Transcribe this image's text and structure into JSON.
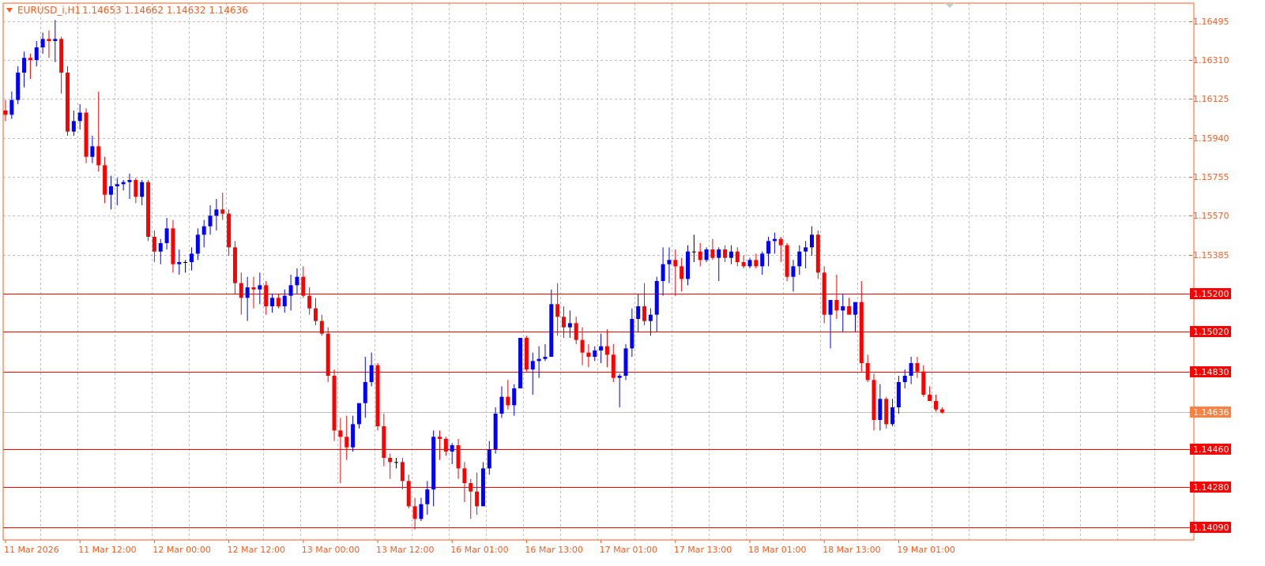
{
  "header": {
    "symbol_label": "EURUSD_i,H1",
    "ohlc_text": "1.14653 1.14662 1.14632 1.14636"
  },
  "colors": {
    "bull": "#0000ff",
    "bear": "#ff0000",
    "wick": "#000000",
    "grid": "#c0c0c0",
    "frame": "#ff5a1f",
    "axis_text": "#ff5a1f",
    "level_line": "#ff0000",
    "price_tag_bg": "#ff0000",
    "current_tag_bg": "#ff8040"
  },
  "chart_data": {
    "type": "candlestick",
    "timeframe": "H1",
    "grid": true,
    "ylim": [
      1.1403,
      1.1658
    ],
    "y_ticks": [
      "1.16495",
      "1.16310",
      "1.16125",
      "1.15940",
      "1.15755",
      "1.15570",
      "1.15385",
      "1.15200",
      "1.15020",
      "1.14830",
      "1.14636",
      "1.14460",
      "1.14280",
      "1.14090"
    ],
    "x_labels": [
      "11 Mar 2026",
      "11 Mar 12:00",
      "12 Mar 00:00",
      "12 Mar 12:00",
      "13 Mar 00:00",
      "13 Mar 12:00",
      "16 Mar 01:00",
      "16 Mar 13:00",
      "17 Mar 01:00",
      "17 Mar 13:00",
      "18 Mar 01:00",
      "18 Mar 13:00",
      "19 Mar 01:00"
    ],
    "x_label_bar_index": [
      0,
      12,
      24,
      36,
      48,
      60,
      72,
      84,
      96,
      108,
      120,
      132,
      144
    ],
    "levels": [
      1.152,
      1.1502,
      1.1483,
      1.1446,
      1.1428,
      1.1409
    ],
    "level_labels": [
      "1.15200",
      "1.15020",
      "1.14830",
      "1.14460",
      "1.14280",
      "1.14090"
    ],
    "current_price": 1.14636,
    "current_price_label": "1.14636",
    "candles": [
      [
        1.1607,
        1.1612,
        1.1602,
        1.1605
      ],
      [
        1.1605,
        1.1616,
        1.1603,
        1.1612
      ],
      [
        1.1612,
        1.1628,
        1.161,
        1.1625
      ],
      [
        1.1625,
        1.1635,
        1.1618,
        1.1632
      ],
      [
        1.1632,
        1.1634,
        1.1622,
        1.1631
      ],
      [
        1.1631,
        1.164,
        1.1628,
        1.1637
      ],
      [
        1.1637,
        1.1644,
        1.1634,
        1.1641
      ],
      [
        1.1641,
        1.1645,
        1.1632,
        1.164
      ],
      [
        1.164,
        1.165,
        1.163,
        1.1641
      ],
      [
        1.1641,
        1.1642,
        1.1615,
        1.1625
      ],
      [
        1.1625,
        1.1628,
        1.1595,
        1.1597
      ],
      [
        1.1597,
        1.1607,
        1.1595,
        1.1602
      ],
      [
        1.1602,
        1.161,
        1.1598,
        1.1606
      ],
      [
        1.1606,
        1.1608,
        1.1582,
        1.1585
      ],
      [
        1.1585,
        1.1595,
        1.1582,
        1.159
      ],
      [
        1.159,
        1.1616,
        1.1578,
        1.1581
      ],
      [
        1.1581,
        1.1585,
        1.1563,
        1.1567
      ],
      [
        1.1567,
        1.1576,
        1.156,
        1.1571
      ],
      [
        1.1571,
        1.1575,
        1.1562,
        1.1572
      ],
      [
        1.1572,
        1.1574,
        1.1569,
        1.1573
      ],
      [
        1.1573,
        1.1577,
        1.1565,
        1.1574
      ],
      [
        1.1574,
        1.1575,
        1.1563,
        1.1566
      ],
      [
        1.1566,
        1.1574,
        1.1562,
        1.1573
      ],
      [
        1.1573,
        1.1574,
        1.1545,
        1.1547
      ],
      [
        1.1547,
        1.155,
        1.1535,
        1.154
      ],
      [
        1.154,
        1.1546,
        1.1534,
        1.1544
      ],
      [
        1.1544,
        1.1556,
        1.1541,
        1.1551
      ],
      [
        1.1551,
        1.1555,
        1.153,
        1.1534
      ],
      [
        1.1534,
        1.1541,
        1.1529,
        1.1535
      ],
      [
        1.1535,
        1.1536,
        1.153,
        1.1535
      ],
      [
        1.1535,
        1.1542,
        1.1531,
        1.1539
      ],
      [
        1.1539,
        1.1551,
        1.1536,
        1.1548
      ],
      [
        1.1548,
        1.1555,
        1.1542,
        1.1552
      ],
      [
        1.1552,
        1.1562,
        1.1548,
        1.1557
      ],
      [
        1.1557,
        1.1565,
        1.155,
        1.156
      ],
      [
        1.156,
        1.1568,
        1.1555,
        1.1558
      ],
      [
        1.1558,
        1.156,
        1.1538,
        1.1542
      ],
      [
        1.1542,
        1.1545,
        1.152,
        1.1525
      ],
      [
        1.1525,
        1.153,
        1.151,
        1.1518
      ],
      [
        1.1518,
        1.1528,
        1.1507,
        1.1523
      ],
      [
        1.1523,
        1.1528,
        1.1513,
        1.1522
      ],
      [
        1.1522,
        1.153,
        1.1515,
        1.1524
      ],
      [
        1.1524,
        1.1526,
        1.151,
        1.1514
      ],
      [
        1.1514,
        1.152,
        1.1511,
        1.1518
      ],
      [
        1.1518,
        1.152,
        1.1513,
        1.1514
      ],
      [
        1.1514,
        1.1522,
        1.1511,
        1.1519
      ],
      [
        1.1519,
        1.1529,
        1.1512,
        1.1524
      ],
      [
        1.1524,
        1.1532,
        1.152,
        1.1528
      ],
      [
        1.1528,
        1.1533,
        1.1518,
        1.1519
      ],
      [
        1.1519,
        1.1523,
        1.151,
        1.1513
      ],
      [
        1.1513,
        1.1518,
        1.1505,
        1.1507
      ],
      [
        1.1507,
        1.151,
        1.15,
        1.1501
      ],
      [
        1.1501,
        1.1504,
        1.1478,
        1.1481
      ],
      [
        1.1481,
        1.1484,
        1.145,
        1.1455
      ],
      [
        1.1455,
        1.1461,
        1.143,
        1.1452
      ],
      [
        1.1452,
        1.1462,
        1.1441,
        1.1447
      ],
      [
        1.1447,
        1.1462,
        1.1445,
        1.1458
      ],
      [
        1.1458,
        1.1467,
        1.1456,
        1.1468
      ],
      [
        1.1468,
        1.149,
        1.1461,
        1.1478
      ],
      [
        1.1478,
        1.1492,
        1.1476,
        1.1486
      ],
      [
        1.1486,
        1.1487,
        1.1455,
        1.1457
      ],
      [
        1.1457,
        1.1463,
        1.1438,
        1.1442
      ],
      [
        1.1442,
        1.1444,
        1.1432,
        1.144
      ],
      [
        1.144,
        1.1442,
        1.1437,
        1.144
      ],
      [
        1.144,
        1.1442,
        1.1427,
        1.1431
      ],
      [
        1.1431,
        1.1434,
        1.1418,
        1.1419
      ],
      [
        1.1419,
        1.1423,
        1.1408,
        1.1413
      ],
      [
        1.1413,
        1.1423,
        1.1412,
        1.142
      ],
      [
        1.142,
        1.1431,
        1.1415,
        1.1427
      ],
      [
        1.1427,
        1.1455,
        1.1419,
        1.1452
      ],
      [
        1.1452,
        1.1455,
        1.1441,
        1.1451
      ],
      [
        1.1451,
        1.1452,
        1.1443,
        1.1445
      ],
      [
        1.1445,
        1.1449,
        1.1439,
        1.1448
      ],
      [
        1.1448,
        1.1451,
        1.1432,
        1.1437
      ],
      [
        1.1437,
        1.144,
        1.1421,
        1.143
      ],
      [
        1.143,
        1.1432,
        1.1413,
        1.1426
      ],
      [
        1.1426,
        1.1435,
        1.1415,
        1.1419
      ],
      [
        1.1419,
        1.144,
        1.1419,
        1.1437
      ],
      [
        1.1437,
        1.145,
        1.1434,
        1.1446
      ],
      [
        1.1446,
        1.1466,
        1.1444,
        1.1463
      ],
      [
        1.1463,
        1.1476,
        1.1461,
        1.1471
      ],
      [
        1.1471,
        1.1479,
        1.1465,
        1.1467
      ],
      [
        1.1467,
        1.1477,
        1.1462,
        1.1475
      ],
      [
        1.1475,
        1.1499,
        1.1475,
        1.1499
      ],
      [
        1.1499,
        1.15,
        1.1483,
        1.1484
      ],
      [
        1.1484,
        1.1492,
        1.1472,
        1.1488
      ],
      [
        1.1488,
        1.1495,
        1.148,
        1.1489
      ],
      [
        1.1489,
        1.1496,
        1.1488,
        1.149
      ],
      [
        1.149,
        1.1522,
        1.149,
        1.1515
      ],
      [
        1.1515,
        1.1525,
        1.15,
        1.1509
      ],
      [
        1.1509,
        1.1514,
        1.1499,
        1.1504
      ],
      [
        1.1504,
        1.1512,
        1.1499,
        1.1506
      ],
      [
        1.1506,
        1.1509,
        1.1496,
        1.1498
      ],
      [
        1.1498,
        1.1504,
        1.1486,
        1.1492
      ],
      [
        1.1492,
        1.1496,
        1.1485,
        1.149
      ],
      [
        1.149,
        1.1495,
        1.1488,
        1.1493
      ],
      [
        1.1493,
        1.1501,
        1.1487,
        1.1495
      ],
      [
        1.1495,
        1.1503,
        1.1485,
        1.1491
      ],
      [
        1.1491,
        1.1496,
        1.1478,
        1.148
      ],
      [
        1.148,
        1.1482,
        1.1466,
        1.1481
      ],
      [
        1.1481,
        1.1496,
        1.1479,
        1.1494
      ],
      [
        1.1494,
        1.1513,
        1.149,
        1.1508
      ],
      [
        1.1508,
        1.152,
        1.1502,
        1.1514
      ],
      [
        1.1514,
        1.1525,
        1.1505,
        1.1507
      ],
      [
        1.1507,
        1.1513,
        1.15,
        1.151
      ],
      [
        1.151,
        1.1528,
        1.1502,
        1.1526
      ],
      [
        1.1526,
        1.1542,
        1.1519,
        1.1534
      ],
      [
        1.1534,
        1.1542,
        1.1525,
        1.1536
      ],
      [
        1.1536,
        1.1541,
        1.1519,
        1.1533
      ],
      [
        1.1533,
        1.1537,
        1.1521,
        1.1527
      ],
      [
        1.1527,
        1.1543,
        1.1524,
        1.154
      ],
      [
        1.154,
        1.1548,
        1.1535,
        1.154
      ],
      [
        1.154,
        1.1544,
        1.1533,
        1.1536
      ],
      [
        1.1536,
        1.1542,
        1.1535,
        1.1541
      ],
      [
        1.1541,
        1.1546,
        1.1536,
        1.1537
      ],
      [
        1.1537,
        1.1542,
        1.1526,
        1.1541
      ],
      [
        1.1541,
        1.1543,
        1.1535,
        1.1537
      ],
      [
        1.1537,
        1.1543,
        1.1534,
        1.154
      ],
      [
        1.154,
        1.1542,
        1.1533,
        1.1535
      ],
      [
        1.1535,
        1.1538,
        1.1532,
        1.1533
      ],
      [
        1.1533,
        1.1537,
        1.1532,
        1.1536
      ],
      [
        1.1536,
        1.1539,
        1.1532,
        1.1533
      ],
      [
        1.1533,
        1.154,
        1.1529,
        1.1539
      ],
      [
        1.1539,
        1.1547,
        1.1533,
        1.1545
      ],
      [
        1.1545,
        1.1549,
        1.1539,
        1.1546
      ],
      [
        1.1546,
        1.1547,
        1.1535,
        1.1543
      ],
      [
        1.1543,
        1.1544,
        1.1526,
        1.1528
      ],
      [
        1.1528,
        1.1536,
        1.1521,
        1.1533
      ],
      [
        1.1533,
        1.1543,
        1.1529,
        1.154
      ],
      [
        1.154,
        1.1545,
        1.1532,
        1.1542
      ],
      [
        1.1542,
        1.1552,
        1.1538,
        1.1548
      ],
      [
        1.1548,
        1.155,
        1.1527,
        1.153
      ],
      [
        1.153,
        1.1533,
        1.1506,
        1.151
      ],
      [
        1.151,
        1.1516,
        1.1494,
        1.1517
      ],
      [
        1.1517,
        1.1529,
        1.1508,
        1.1512
      ],
      [
        1.1512,
        1.152,
        1.1502,
        1.1514
      ],
      [
        1.1514,
        1.1518,
        1.1511,
        1.151
      ],
      [
        1.151,
        1.1515,
        1.1502,
        1.1516
      ],
      [
        1.1516,
        1.1526,
        1.1483,
        1.1487
      ],
      [
        1.1487,
        1.1491,
        1.1478,
        1.1479
      ],
      [
        1.1479,
        1.1482,
        1.1455,
        1.146
      ],
      [
        1.146,
        1.1477,
        1.1455,
        1.147
      ],
      [
        1.147,
        1.1471,
        1.1456,
        1.1458
      ],
      [
        1.1458,
        1.147,
        1.1457,
        1.1466
      ],
      [
        1.1466,
        1.1481,
        1.1463,
        1.1478
      ],
      [
        1.1478,
        1.1484,
        1.1475,
        1.1481
      ],
      [
        1.1481,
        1.149,
        1.1477,
        1.1487
      ],
      [
        1.1487,
        1.149,
        1.148,
        1.1483
      ],
      [
        1.1483,
        1.1486,
        1.1471,
        1.1472
      ],
      [
        1.1472,
        1.1476,
        1.1469,
        1.1469
      ],
      [
        1.1469,
        1.1472,
        1.1464,
        1.1465
      ],
      [
        1.1465,
        1.1466,
        1.1463,
        1.14636
      ]
    ]
  }
}
